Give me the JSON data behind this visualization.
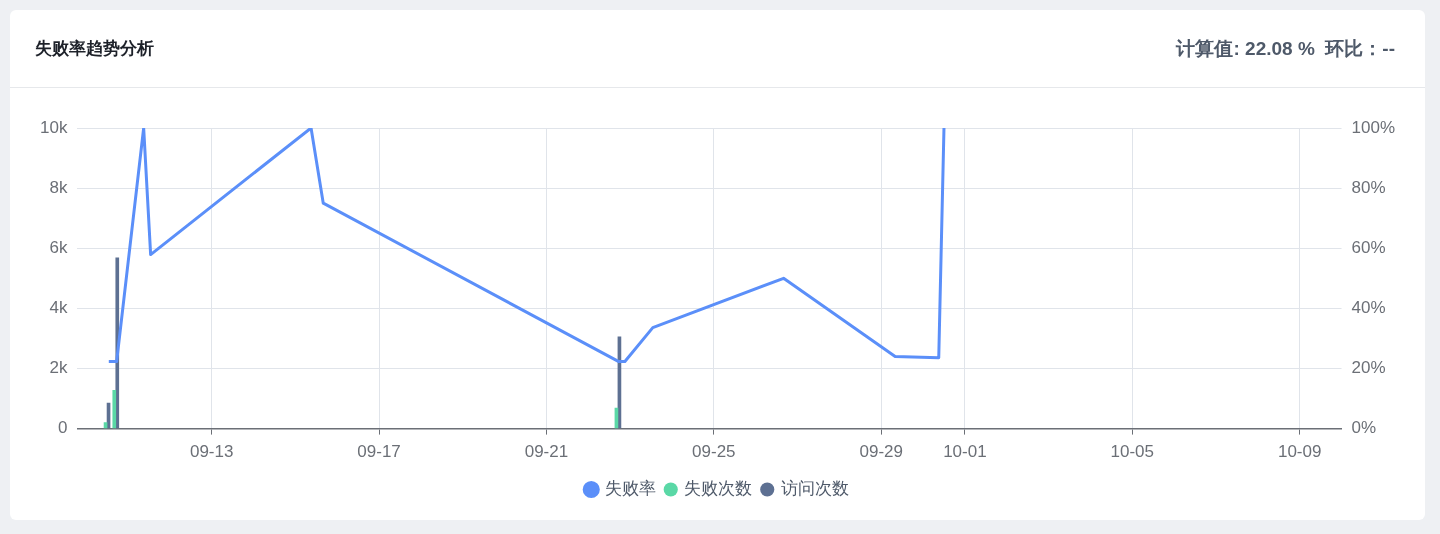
{
  "chart_data": {
    "type": "bar",
    "title": "失败率趋势分析",
    "annotations": [
      "计算值: 22.08 %  环比：--"
    ],
    "x": [
      "--09-10T12:00",
      "--09-10T17:00",
      "--09-22T17:00"
    ],
    "series": [
      {
        "name": "失败率",
        "type": "line",
        "axis": "y2",
        "color": "#5b8ff9",
        "x": [
          "--09-10T13:00",
          "--09-10T17:30",
          "--09-11T09:00",
          "--09-11T13:00",
          "--09-15T09:00",
          "--09-15T16:00",
          "--09-22T17:30",
          "--09-22T21:00",
          "--09-23T13:00",
          "--09-26T16:00",
          "--09-29T08:00",
          "--09-30T09:00",
          "--09-30T12:00"
        ],
        "values": [
          22.3,
          22.3,
          100,
          57.9,
          100,
          75,
          22.3,
          22.3,
          33.6,
          50,
          24,
          23.6,
          100
        ]
      },
      {
        "name": "失败次数",
        "color": "#5ad8a6",
        "values": [
          200,
          1270,
          680
        ]
      },
      {
        "name": "访问次数",
        "color": "#5d7092",
        "values": [
          850,
          5680,
          3050
        ]
      }
    ],
    "xlim": [
      "--09-09T19:00",
      "--10-10T00:00"
    ],
    "xticks": [
      {
        "value": "--09-13",
        "label": "09-13"
      },
      {
        "value": "--09-17",
        "label": "09-17"
      },
      {
        "value": "--09-21",
        "label": "09-21"
      },
      {
        "value": "--09-25",
        "label": "09-25"
      },
      {
        "value": "--09-29",
        "label": "09-29"
      },
      {
        "value": "--10-01",
        "label": "10-01"
      },
      {
        "value": "--10-05",
        "label": "10-05"
      },
      {
        "value": "--10-09",
        "label": "10-09"
      }
    ],
    "ylim": [
      0,
      10000
    ],
    "yticks": [
      {
        "value": 0,
        "label": "0"
      },
      {
        "value": 2000,
        "label": "2k"
      },
      {
        "value": 4000,
        "label": "4k"
      },
      {
        "value": 6000,
        "label": "6k"
      },
      {
        "value": 8000,
        "label": "8k"
      },
      {
        "value": 10000,
        "label": "10k"
      }
    ],
    "y2lim": [
      0,
      100
    ],
    "y2ticks": [
      {
        "value": 0,
        "label": "0%"
      },
      {
        "value": 20,
        "label": "20%"
      },
      {
        "value": 40,
        "label": "40%"
      },
      {
        "value": 60,
        "label": "60%"
      },
      {
        "value": 80,
        "label": "80%"
      },
      {
        "value": 100,
        "label": "100%"
      }
    ],
    "grid": true,
    "legend": "bottom"
  }
}
